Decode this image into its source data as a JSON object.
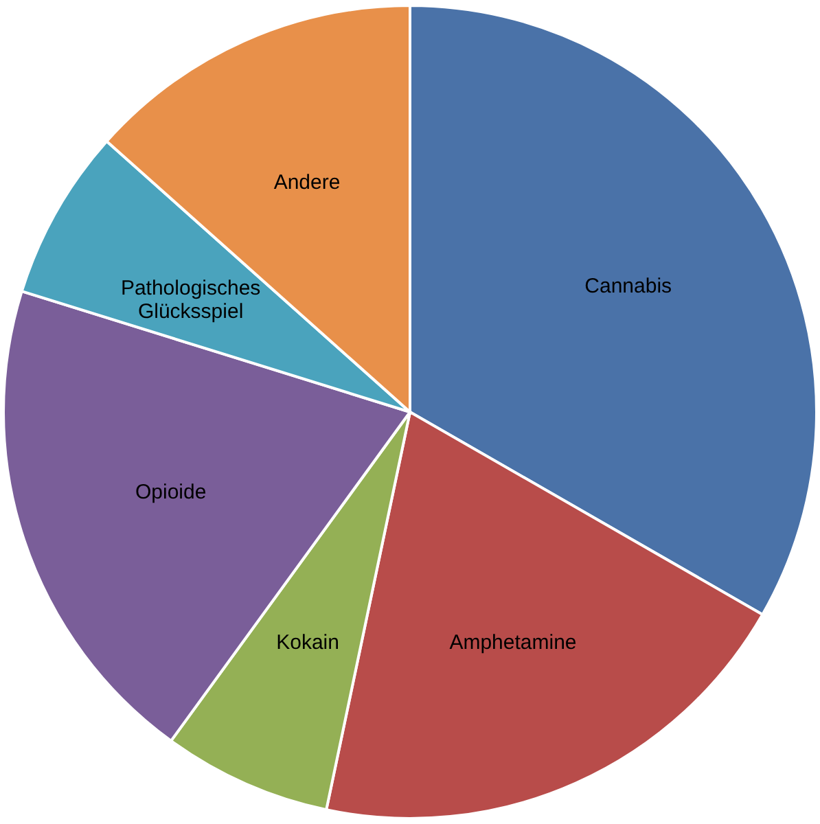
{
  "chart_data": {
    "type": "pie",
    "categories": [
      "Cannabis",
      "Amphetamine",
      "Kokain",
      "Opioide",
      "Pathologisches Glücksspiel",
      "Andere"
    ],
    "values": [
      33.3,
      20.0,
      6.7,
      19.8,
      6.8,
      13.4
    ],
    "colors": [
      "#4a72a8",
      "#b84c4a",
      "#94b055",
      "#7a5e99",
      "#4aa3bd",
      "#e8904a"
    ]
  }
}
